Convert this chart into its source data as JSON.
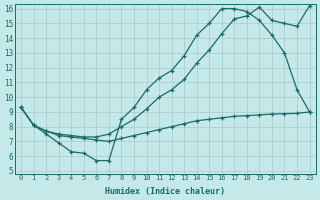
{
  "xlabel": "Humidex (Indice chaleur)",
  "bg_color": "#c5e8e8",
  "grid_color": "#aad0d0",
  "line_color": "#1a6b6b",
  "xlim": [
    -0.5,
    23.5
  ],
  "ylim": [
    4.8,
    16.3
  ],
  "xticks": [
    0,
    1,
    2,
    3,
    4,
    5,
    6,
    7,
    8,
    9,
    10,
    11,
    12,
    13,
    14,
    15,
    16,
    17,
    18,
    19,
    20,
    21,
    22,
    23
  ],
  "yticks": [
    5,
    6,
    7,
    8,
    9,
    10,
    11,
    12,
    13,
    14,
    15,
    16
  ],
  "line1_x": [
    0,
    1,
    2,
    3,
    4,
    5,
    6,
    7,
    8,
    9,
    10,
    11,
    12,
    13,
    14,
    15,
    16,
    17,
    18,
    19,
    20,
    21,
    22,
    23
  ],
  "line1_y": [
    9.3,
    8.1,
    7.5,
    6.9,
    6.3,
    6.2,
    5.7,
    5.7,
    8.5,
    9.3,
    10.5,
    11.3,
    11.8,
    12.8,
    14.2,
    15.0,
    16.0,
    16.0,
    15.8,
    15.2,
    14.2,
    13.0,
    10.5,
    9.0
  ],
  "line2_x": [
    0,
    1,
    2,
    3,
    4,
    5,
    6,
    7,
    8,
    9,
    10,
    11,
    12,
    13,
    14,
    15,
    16,
    17,
    18,
    19,
    20,
    21,
    22,
    23
  ],
  "line2_y": [
    9.3,
    8.1,
    7.7,
    7.5,
    7.4,
    7.3,
    7.3,
    7.5,
    8.0,
    8.5,
    9.2,
    10.0,
    10.5,
    11.2,
    12.3,
    13.2,
    14.3,
    15.3,
    15.5,
    16.1,
    15.2,
    15.0,
    14.8,
    16.2
  ],
  "line3_x": [
    0,
    1,
    2,
    3,
    4,
    5,
    6,
    7,
    8,
    9,
    10,
    11,
    12,
    13,
    14,
    15,
    16,
    17,
    18,
    19,
    20,
    21,
    22,
    23
  ],
  "line3_y": [
    9.3,
    8.1,
    7.7,
    7.4,
    7.3,
    7.2,
    7.1,
    7.0,
    7.2,
    7.4,
    7.6,
    7.8,
    8.0,
    8.2,
    8.4,
    8.5,
    8.6,
    8.7,
    8.75,
    8.8,
    8.85,
    8.88,
    8.9,
    9.0
  ]
}
